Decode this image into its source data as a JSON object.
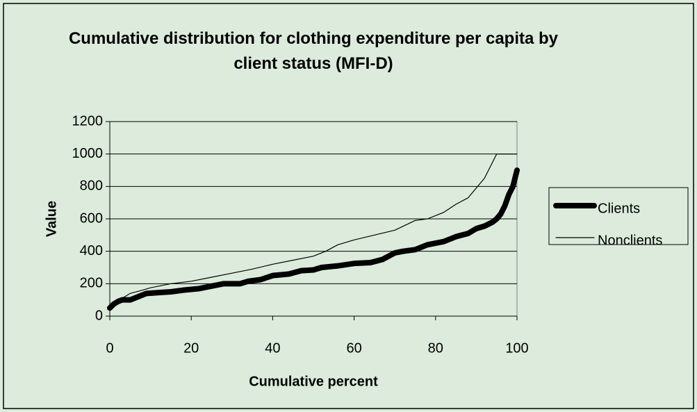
{
  "chart_data": {
    "type": "line",
    "title": "Cumulative distribution for clothing expenditure per capita by client status (MFI-D)",
    "x_label": "Cumulative percent",
    "y_label": "Value",
    "xlim": [
      0,
      100
    ],
    "xticks": [
      0,
      20,
      40,
      60,
      80,
      100
    ],
    "ylim": [
      0,
      1200
    ],
    "yticks": [
      0,
      200,
      400,
      600,
      800,
      1000,
      1200
    ],
    "grid": true,
    "legend": "right",
    "series": [
      {
        "name": "Clients",
        "color": "#000000",
        "x": [
          0,
          1,
          2,
          3,
          5,
          7,
          9,
          12,
          15,
          18,
          22,
          25,
          28,
          32,
          34,
          37,
          40,
          44,
          47,
          50,
          52,
          56,
          60,
          64,
          67,
          70,
          72,
          75,
          78,
          82,
          85,
          88,
          90,
          92,
          94,
          95,
          96,
          97,
          98,
          99,
          100
        ],
        "values": [
          50,
          75,
          90,
          100,
          100,
          120,
          140,
          145,
          150,
          160,
          170,
          185,
          200,
          200,
          215,
          225,
          250,
          260,
          280,
          285,
          300,
          310,
          325,
          330,
          350,
          390,
          400,
          410,
          440,
          460,
          490,
          510,
          540,
          555,
          580,
          600,
          630,
          680,
          750,
          800,
          900
        ]
      },
      {
        "name": "Nonclients",
        "color": "#000000",
        "x": [
          0,
          1,
          3,
          5,
          8,
          10,
          15,
          20,
          25,
          30,
          35,
          40,
          45,
          50,
          53,
          56,
          60,
          65,
          70,
          75,
          78,
          82,
          85,
          88,
          90,
          92,
          93,
          94,
          95,
          100
        ],
        "values": [
          50,
          90,
          110,
          140,
          160,
          175,
          200,
          215,
          240,
          265,
          290,
          320,
          345,
          370,
          400,
          440,
          470,
          500,
          530,
          590,
          600,
          640,
          690,
          730,
          790,
          850,
          900,
          950,
          1000,
          1000
        ]
      }
    ]
  }
}
